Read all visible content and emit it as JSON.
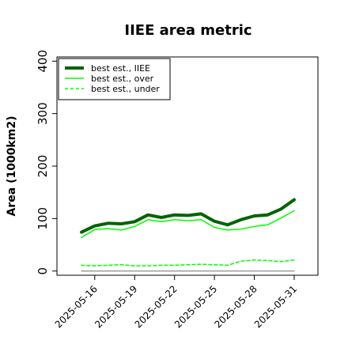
{
  "chart_data": {
    "type": "line",
    "title": "IIEE area metric",
    "xlabel": "",
    "ylabel": "Area (1000km2)",
    "x": [
      "2025-05-15",
      "2025-05-16",
      "2025-05-17",
      "2025-05-18",
      "2025-05-19",
      "2025-05-20",
      "2025-05-21",
      "2025-05-22",
      "2025-05-23",
      "2025-05-24",
      "2025-05-25",
      "2025-05-26",
      "2025-05-27",
      "2025-05-28",
      "2025-05-29",
      "2025-05-30",
      "2025-05-31"
    ],
    "xticks": [
      "2025-05-16",
      "2025-05-19",
      "2025-05-22",
      "2025-05-25",
      "2025-05-28",
      "2025-05-31"
    ],
    "yticks": [
      0,
      100,
      200,
      300,
      400
    ],
    "ylim": [
      -8,
      408
    ],
    "legend_position": "top-left",
    "grid": false,
    "series": [
      {
        "name": "best est., IIEE",
        "color": "#006400",
        "style": "solid",
        "width": 4,
        "values": [
          74,
          86,
          91,
          90,
          94,
          107,
          102,
          107,
          106,
          109,
          95,
          88,
          98,
          105,
          107,
          118,
          136
        ]
      },
      {
        "name": "best est., over",
        "color": "#00ff00",
        "style": "solid",
        "width": 1.5,
        "values": [
          64,
          79,
          81,
          78,
          85,
          98,
          94,
          98,
          96,
          98,
          83,
          78,
          80,
          85,
          88,
          101,
          115
        ]
      },
      {
        "name": "best est., under",
        "color": "#00ff00",
        "style": "dashed",
        "width": 1.5,
        "values": [
          11,
          10,
          11,
          12,
          10,
          10,
          11,
          11,
          12,
          13,
          12,
          11,
          19,
          21,
          20,
          18,
          21
        ]
      },
      {
        "name": "",
        "color": "#808080",
        "style": "solid",
        "width": 1.2,
        "values": [
          0,
          0,
          0,
          0,
          0,
          0,
          0,
          0,
          0,
          0,
          0,
          0,
          0,
          0,
          0,
          0,
          0
        ]
      }
    ]
  }
}
